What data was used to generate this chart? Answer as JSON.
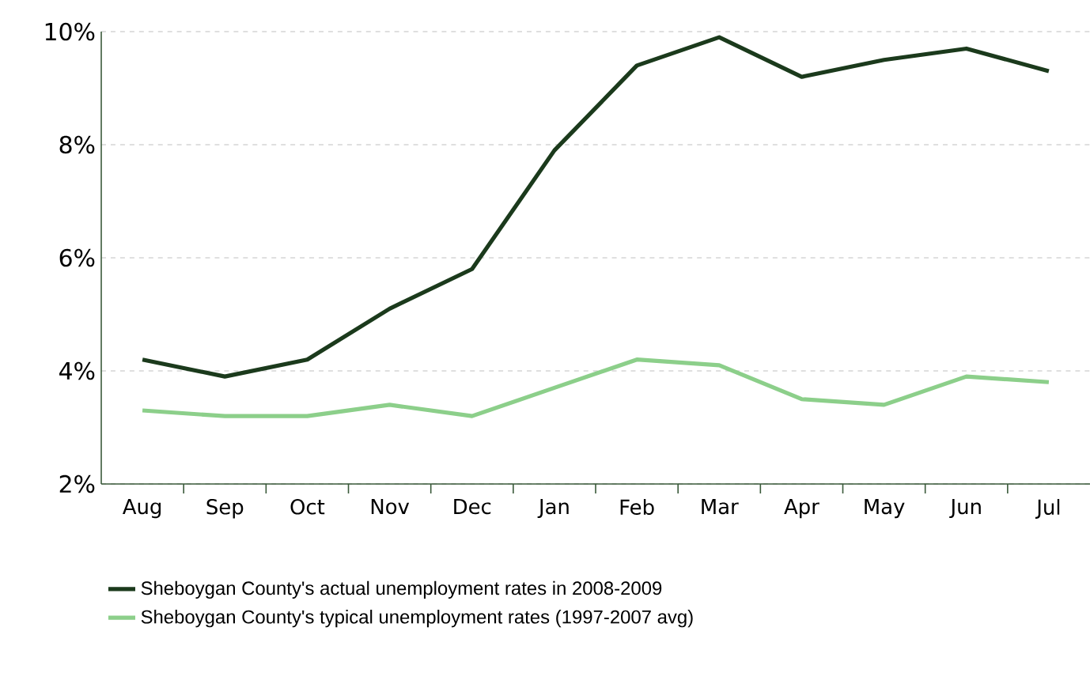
{
  "chart_data": {
    "type": "line",
    "categories": [
      "Aug",
      "Sep",
      "Oct",
      "Nov",
      "Dec",
      "Jan",
      "Feb",
      "Mar",
      "Apr",
      "May",
      "Jun",
      "Jul"
    ],
    "series": [
      {
        "name": "Sheboygan County's actual unemployment rates in 2008-2009",
        "color": "#1b3a1c",
        "values": [
          4.2,
          3.9,
          4.2,
          5.1,
          5.8,
          7.9,
          9.4,
          9.9,
          9.2,
          9.5,
          9.7,
          9.3
        ]
      },
      {
        "name": "Sheboygan County's typical unemployment rates (1997-2007 avg)",
        "color": "#8ccf8a",
        "values": [
          3.3,
          3.2,
          3.2,
          3.4,
          3.2,
          3.7,
          4.2,
          4.1,
          3.5,
          3.4,
          3.9,
          3.8
        ]
      }
    ],
    "ylim": [
      2,
      10
    ],
    "yticks": [
      {
        "value": 2,
        "label": "2%"
      },
      {
        "value": 4,
        "label": "4%"
      },
      {
        "value": 6,
        "label": "6%"
      },
      {
        "value": 8,
        "label": "8%"
      },
      {
        "value": 10,
        "label": "10%"
      }
    ],
    "grid": "y",
    "legend": "bottom",
    "marker": "none",
    "line_style": "solid"
  }
}
